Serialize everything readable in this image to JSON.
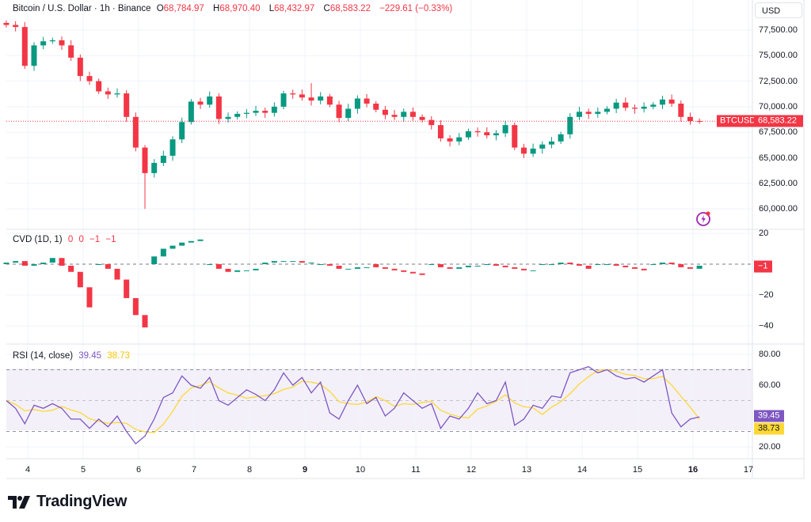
{
  "header": {
    "symbol_title": "Bitcoin / U.S. Dollar · 1h · Binance",
    "open_label": "O",
    "open": "68,784.97",
    "high_label": "H",
    "high": "68,970.40",
    "low_label": "L",
    "low": "68,432.97",
    "close_label": "C",
    "close": "68,583.22",
    "change": "−229.61 (−0.33%)"
  },
  "currency_button": "USD",
  "price_badge": {
    "symbol": "BTCUSD",
    "value": "68,583.22"
  },
  "cvd_legend": {
    "title": "CVD (1D, 1)",
    "values": [
      "0",
      "0",
      "−1",
      "−1"
    ],
    "badge": "−1"
  },
  "rsi_legend": {
    "title": "RSI (14, close)",
    "rsi": "39.45",
    "ma": "38.73"
  },
  "brand": "TradingView",
  "colors": {
    "up": "#089981",
    "down": "#f23645",
    "rsi": "#7e57c2",
    "rsi_ma": "#fdd835",
    "rsi_band": "#7e57c2"
  },
  "chart_data": [
    {
      "type": "candlestick",
      "title": "Bitcoin / U.S. Dollar · 1h · Binance",
      "note": "closes sampled every 4 hours, starting day 3.6",
      "x_start_day": 3.614,
      "step_days": 0.1667,
      "close": [
        78000,
        77800,
        74000,
        76000,
        76400,
        76500,
        76000,
        74800,
        73000,
        72500,
        71500,
        71200,
        71300,
        69000,
        66000,
        63500,
        64500,
        65200,
        66800,
        68500,
        70500,
        70200,
        71000,
        68800,
        69000,
        69300,
        69400,
        69600,
        69400,
        70000,
        71300,
        71200,
        70900,
        70600,
        71000,
        70200,
        68900,
        69800,
        70800,
        70300,
        69700,
        69200,
        69000,
        69500,
        69000,
        68700,
        68200,
        66900,
        66600,
        67000,
        67600,
        67500,
        67200,
        67400,
        68200,
        66000,
        65400,
        65900,
        66300,
        66600,
        67300,
        69000,
        69500,
        69300,
        69500,
        69800,
        70400,
        69900,
        69800,
        70000,
        70200,
        70700,
        70300,
        69000,
        68600,
        68583.22
      ],
      "extreme_low": {
        "index": 15,
        "value": 60000
      },
      "extreme_high": {
        "index": 33,
        "value": 72300
      },
      "last_price": 68583.22,
      "yticks": [
        {
          "v": 77500,
          "t": "77,500.00"
        },
        {
          "v": 75000,
          "t": "75,000.00"
        },
        {
          "v": 72500,
          "t": "72,500.00"
        },
        {
          "v": 70000,
          "t": "70,000.00"
        },
        {
          "v": 67500,
          "t": "67,500.00"
        },
        {
          "v": 65000,
          "t": "65,000.00"
        },
        {
          "v": 62500,
          "t": "62,500.00"
        },
        {
          "v": 60000,
          "t": "60,000.00"
        }
      ],
      "ylim": [
        59000,
        78500
      ]
    },
    {
      "type": "candlestick",
      "title": "CVD (1D, 1)",
      "reset_every": 6,
      "reset_offset": 4,
      "close": [
        1,
        2,
        -1,
        0,
        1,
        4,
        -1,
        -5,
        -15,
        -28,
        0,
        -3,
        -10,
        -22,
        -33,
        -41,
        5,
        10,
        12,
        14,
        15,
        16,
        0,
        -3,
        -5,
        -4,
        -4,
        -3,
        1,
        2,
        2,
        2,
        1,
        1,
        0,
        -1,
        -3,
        -3,
        -2,
        -2,
        -2,
        -3,
        -4,
        -5,
        -6,
        -7,
        0,
        -2,
        -3,
        -2,
        -1,
        -1,
        0,
        -1,
        -2,
        -3,
        -4,
        -4,
        0,
        0,
        1,
        0,
        -1,
        -3,
        0,
        0,
        -1,
        -2,
        -3,
        -4,
        0,
        1,
        0,
        -2,
        -3,
        -1
      ],
      "yticks": [
        {
          "v": 20,
          "t": "20"
        },
        {
          "v": -20,
          "t": "−20"
        },
        {
          "v": -40,
          "t": "−40"
        }
      ]
    },
    {
      "type": "line",
      "title": "RSI (14, close)",
      "rsi": [
        50,
        45,
        35,
        47,
        45,
        48,
        45,
        38,
        38,
        32,
        38,
        33,
        40,
        30,
        22,
        27,
        38,
        52,
        55,
        66,
        60,
        58,
        65,
        50,
        47,
        52,
        57,
        54,
        50,
        57,
        68,
        60,
        65,
        55,
        62,
        42,
        38,
        50,
        60,
        48,
        52,
        40,
        45,
        55,
        50,
        45,
        48,
        32,
        40,
        38,
        45,
        55,
        48,
        50,
        62,
        34,
        38,
        47,
        45,
        53,
        52,
        68,
        70,
        72,
        68,
        70,
        66,
        64,
        65,
        62,
        66,
        70,
        42,
        33,
        38,
        39.45
      ],
      "ma_length": 4,
      "bands": [
        70,
        50,
        30
      ],
      "yticks": [
        {
          "v": 80,
          "t": "80.00"
        },
        {
          "v": 60,
          "t": "60.00"
        },
        {
          "v": 20,
          "t": "20.00"
        }
      ]
    }
  ],
  "x_axis": {
    "ticks": [
      {
        "d": 4,
        "t": "4"
      },
      {
        "d": 5,
        "t": "5"
      },
      {
        "d": 6,
        "t": "6"
      },
      {
        "d": 7,
        "t": "7"
      },
      {
        "d": 8,
        "t": "8"
      },
      {
        "d": 9,
        "t": "9",
        "bold": true
      },
      {
        "d": 10,
        "t": "10"
      },
      {
        "d": 11,
        "t": "11"
      },
      {
        "d": 12,
        "t": "12"
      },
      {
        "d": 13,
        "t": "13"
      },
      {
        "d": 14,
        "t": "14"
      },
      {
        "d": 15,
        "t": "15"
      },
      {
        "d": 16,
        "t": "16",
        "bold": true
      },
      {
        "d": 17,
        "t": "17"
      }
    ]
  }
}
